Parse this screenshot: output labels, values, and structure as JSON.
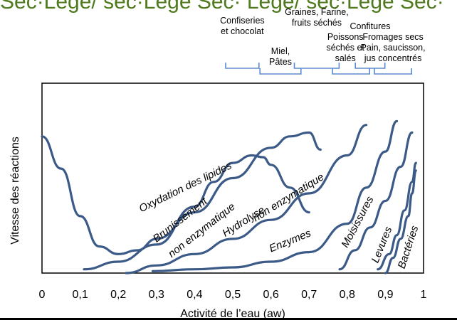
{
  "banner": {
    "text": "Sec·Légè/ sec·Légè Sec· Légè/ sec·Légè Sec·",
    "color": "#4f7a1e"
  },
  "chart_data": {
    "type": "line",
    "title": "",
    "xlabel": "Activité de l’eau (aw)",
    "ylabel": "Vitesse des réactions",
    "xlim": [
      0,
      1
    ],
    "xticks": [
      "0",
      "0,1",
      "0,2",
      "0,3",
      "0,4",
      "0,5",
      "0,6",
      "0,7",
      "0,8",
      "0,9",
      "1"
    ],
    "y_axis_numeric": false,
    "grid": false,
    "line_color": "#3b5a87",
    "series": [
      {
        "name": "Oxydation des lipides",
        "x": [
          0.0,
          0.05,
          0.1,
          0.15,
          0.2,
          0.25,
          0.3,
          0.4,
          0.5,
          0.6,
          0.65,
          0.7,
          0.73
        ],
        "y": [
          0.72,
          0.55,
          0.3,
          0.14,
          0.1,
          0.12,
          0.18,
          0.32,
          0.5,
          0.66,
          0.72,
          0.74,
          0.65
        ]
      },
      {
        "name": "Brunissement non enzymatique",
        "x": [
          0.11,
          0.2,
          0.3,
          0.4,
          0.45,
          0.5,
          0.55,
          0.58,
          0.6,
          0.65,
          0.7
        ],
        "y": [
          0.02,
          0.06,
          0.15,
          0.35,
          0.48,
          0.58,
          0.62,
          0.61,
          0.57,
          0.45,
          0.32
        ]
      },
      {
        "name": "Hydrolyse non enzymatique",
        "x": [
          0.22,
          0.3,
          0.4,
          0.5,
          0.6,
          0.7,
          0.8,
          0.85
        ],
        "y": [
          0.0,
          0.04,
          0.1,
          0.18,
          0.28,
          0.42,
          0.62,
          0.78
        ]
      },
      {
        "name": "Enzymes",
        "x": [
          0.29,
          0.4,
          0.5,
          0.6,
          0.7,
          0.8,
          0.85,
          0.9,
          0.93
        ],
        "y": [
          0.01,
          0.02,
          0.03,
          0.06,
          0.11,
          0.26,
          0.45,
          0.64,
          0.8
        ]
      },
      {
        "name": "Moisissures",
        "x": [
          0.78,
          0.82,
          0.86,
          0.9,
          0.94,
          0.97
        ],
        "y": [
          0.02,
          0.12,
          0.24,
          0.38,
          0.56,
          0.74
        ]
      },
      {
        "name": "Levures",
        "x": [
          0.88,
          0.91,
          0.93,
          0.95,
          0.97,
          0.98
        ],
        "y": [
          0.02,
          0.1,
          0.2,
          0.33,
          0.48,
          0.58
        ]
      },
      {
        "name": "Bactéries",
        "x": [
          0.9,
          0.92,
          0.94,
          0.96,
          0.97,
          0.98
        ],
        "y": [
          0.0,
          0.08,
          0.18,
          0.3,
          0.42,
          0.54
        ]
      }
    ],
    "curve_labels": [
      {
        "text": "Oxydation des lipides",
        "x": 0.26,
        "y": 0.32,
        "angle": -26
      },
      {
        "text": "Brunissement",
        "x": 0.3,
        "y": 0.16,
        "angle": -38
      },
      {
        "text": "non enzymatique",
        "x": 0.34,
        "y": 0.08,
        "angle": -38
      },
      {
        "text": "Hydrolyse",
        "x": 0.48,
        "y": 0.19,
        "angle": -32
      },
      {
        "text": "non enzymatique",
        "x": 0.56,
        "y": 0.27,
        "angle": -32
      },
      {
        "text": "Enzymes",
        "x": 0.6,
        "y": 0.11,
        "angle": -22
      },
      {
        "text": "Moisissures",
        "x": 0.8,
        "y": 0.13,
        "angle": -62
      },
      {
        "text": "Levures",
        "x": 0.88,
        "y": 0.05,
        "angle": -68
      },
      {
        "text": "Bactéries",
        "x": 0.95,
        "y": 0.02,
        "angle": -72
      }
    ],
    "food_categories": [
      {
        "label": "Confiseries\net chocolat",
        "aw_from": 0.5,
        "aw_to": 0.55
      },
      {
        "label": "Miel,\nPâtes",
        "aw_from": 0.59,
        "aw_to": 0.66
      },
      {
        "label": "Graines, Farine,\nfruits séchés",
        "aw_from": 0.68,
        "aw_to": 0.76
      },
      {
        "label": "Poissons\nséchés et\nsalés",
        "aw_from": 0.78,
        "aw_to": 0.84
      },
      {
        "label": "Confitures",
        "aw_from": 0.84,
        "aw_to": 0.88
      },
      {
        "label": "Fromages secs\nPain, saucisson,\njus concentrés",
        "aw_from": 0.89,
        "aw_to": 0.95
      }
    ]
  }
}
